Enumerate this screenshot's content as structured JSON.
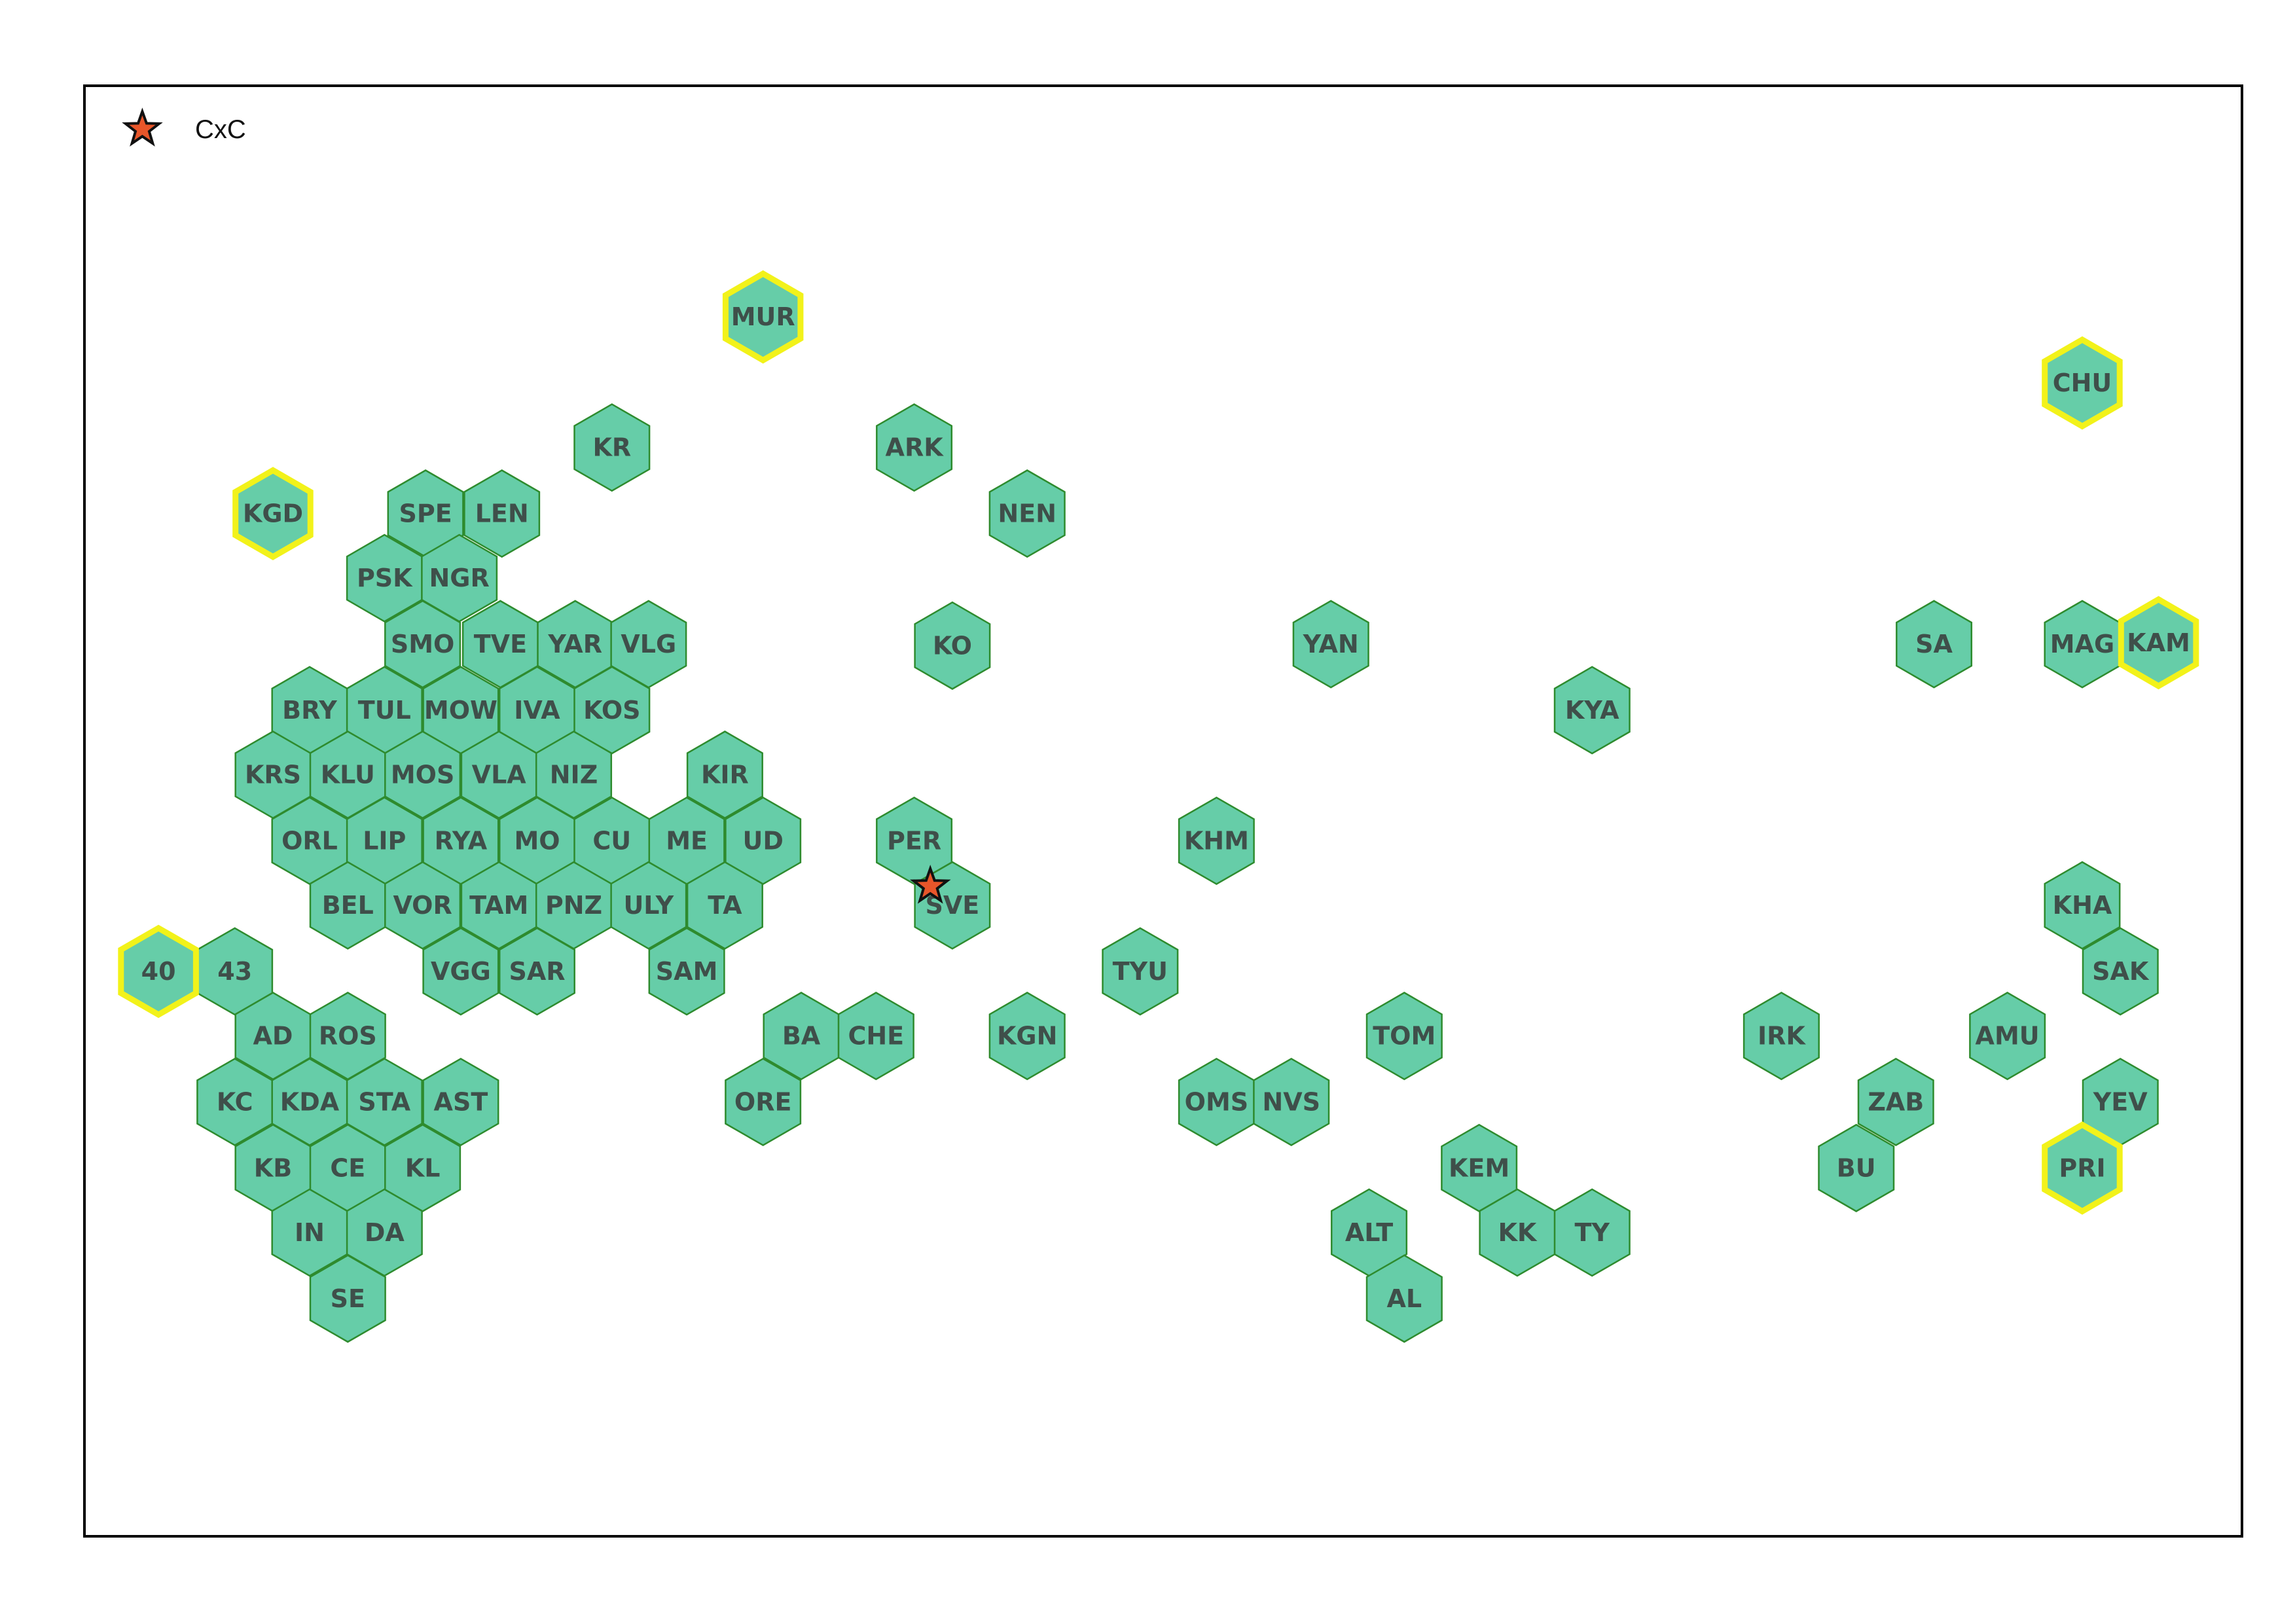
{
  "legend": {
    "label": "CxC",
    "marker_icon": "star-icon",
    "marker_fill": "#e8562a",
    "marker_stroke": "#111111"
  },
  "colors": {
    "hex_fill": "#66cda8",
    "hex_stroke": "#2e8b2e",
    "highlight_stroke": "#f2f21a",
    "frame_stroke": "#000000",
    "label_color": "#3f4f4a"
  },
  "regions": [
    {
      "code": "MUR",
      "highlighted": true
    },
    {
      "code": "CHU",
      "highlighted": true
    },
    {
      "code": "KR",
      "highlighted": false
    },
    {
      "code": "ARK",
      "highlighted": false
    },
    {
      "code": "KGD",
      "highlighted": true
    },
    {
      "code": "SPE",
      "highlighted": false
    },
    {
      "code": "LEN",
      "highlighted": false
    },
    {
      "code": "NEN",
      "highlighted": false
    },
    {
      "code": "PSK",
      "highlighted": false
    },
    {
      "code": "NGR",
      "highlighted": false
    },
    {
      "code": "SMO",
      "highlighted": false
    },
    {
      "code": "TVE",
      "highlighted": false
    },
    {
      "code": "YAR",
      "highlighted": false
    },
    {
      "code": "VLG",
      "highlighted": false
    },
    {
      "code": "KO",
      "highlighted": false
    },
    {
      "code": "YAN",
      "highlighted": false
    },
    {
      "code": "SA",
      "highlighted": false
    },
    {
      "code": "MAG",
      "highlighted": false
    },
    {
      "code": "KAM",
      "highlighted": true
    },
    {
      "code": "BRY",
      "highlighted": false
    },
    {
      "code": "TUL",
      "highlighted": false
    },
    {
      "code": "MOW",
      "highlighted": false
    },
    {
      "code": "IVA",
      "highlighted": false
    },
    {
      "code": "KOS",
      "highlighted": false
    },
    {
      "code": "KYA",
      "highlighted": false
    },
    {
      "code": "KRS",
      "highlighted": false
    },
    {
      "code": "KLU",
      "highlighted": false
    },
    {
      "code": "MOS",
      "highlighted": false
    },
    {
      "code": "VLA",
      "highlighted": false
    },
    {
      "code": "NIZ",
      "highlighted": false
    },
    {
      "code": "KIR",
      "highlighted": false
    },
    {
      "code": "ORL",
      "highlighted": false
    },
    {
      "code": "LIP",
      "highlighted": false
    },
    {
      "code": "RYA",
      "highlighted": false
    },
    {
      "code": "MO",
      "highlighted": false
    },
    {
      "code": "CU",
      "highlighted": false
    },
    {
      "code": "ME",
      "highlighted": false
    },
    {
      "code": "UD",
      "highlighted": false
    },
    {
      "code": "PER",
      "highlighted": false
    },
    {
      "code": "KHM",
      "highlighted": false
    },
    {
      "code": "BEL",
      "highlighted": false
    },
    {
      "code": "VOR",
      "highlighted": false
    },
    {
      "code": "TAM",
      "highlighted": false
    },
    {
      "code": "PNZ",
      "highlighted": false
    },
    {
      "code": "ULY",
      "highlighted": false
    },
    {
      "code": "TA",
      "highlighted": false
    },
    {
      "code": "SVE",
      "highlighted": false
    },
    {
      "code": "KHA",
      "highlighted": false
    },
    {
      "code": "40",
      "highlighted": true
    },
    {
      "code": "43",
      "highlighted": false
    },
    {
      "code": "VGG",
      "highlighted": false
    },
    {
      "code": "SAR",
      "highlighted": false
    },
    {
      "code": "SAM",
      "highlighted": false
    },
    {
      "code": "TYU",
      "highlighted": false
    },
    {
      "code": "SAK",
      "highlighted": false
    },
    {
      "code": "AD",
      "highlighted": false
    },
    {
      "code": "ROS",
      "highlighted": false
    },
    {
      "code": "BA",
      "highlighted": false
    },
    {
      "code": "CHE",
      "highlighted": false
    },
    {
      "code": "KGN",
      "highlighted": false
    },
    {
      "code": "TOM",
      "highlighted": false
    },
    {
      "code": "IRK",
      "highlighted": false
    },
    {
      "code": "AMU",
      "highlighted": false
    },
    {
      "code": "KC",
      "highlighted": false
    },
    {
      "code": "KDA",
      "highlighted": false
    },
    {
      "code": "STA",
      "highlighted": false
    },
    {
      "code": "AST",
      "highlighted": false
    },
    {
      "code": "ORE",
      "highlighted": false
    },
    {
      "code": "OMS",
      "highlighted": false
    },
    {
      "code": "NVS",
      "highlighted": false
    },
    {
      "code": "ZAB",
      "highlighted": false
    },
    {
      "code": "YEV",
      "highlighted": false
    },
    {
      "code": "KB",
      "highlighted": false
    },
    {
      "code": "CE",
      "highlighted": false
    },
    {
      "code": "KL",
      "highlighted": false
    },
    {
      "code": "KEM",
      "highlighted": false
    },
    {
      "code": "BU",
      "highlighted": false
    },
    {
      "code": "PRI",
      "highlighted": true
    },
    {
      "code": "IN",
      "highlighted": false
    },
    {
      "code": "DA",
      "highlighted": false
    },
    {
      "code": "ALT",
      "highlighted": false
    },
    {
      "code": "KK",
      "highlighted": false
    },
    {
      "code": "TY",
      "highlighted": false
    },
    {
      "code": "SE",
      "highlighted": false
    },
    {
      "code": "AL",
      "highlighted": false
    }
  ],
  "marker_region": "SVE"
}
